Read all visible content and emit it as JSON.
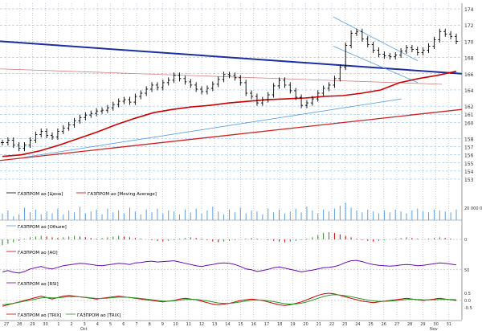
{
  "chart_data": {
    "type": "line",
    "price_axis": {
      "ticks": [
        "174",
        "172",
        "170",
        "168",
        "166",
        "164",
        "162",
        "161",
        "160",
        "158",
        "157",
        "156",
        "155",
        "154",
        "153"
      ],
      "ylim": [
        152.5,
        174.5
      ]
    },
    "legends": {
      "price": [
        "ГАЗПРОМ ao [Цена]",
        "ГАЗПРОМ ao [Moving Average]"
      ],
      "volume": [
        "ГАЗПРОМ ao [Объем]"
      ],
      "ao": [
        "ГАЗПРОМ ao [AO]"
      ],
      "rsi": [
        "ГАЗПРОМ ao [RSI]"
      ],
      "trix": [
        "ГАЗПРОМ ao [TRIX]",
        "ГАЗПРОМ ao [TRIX]"
      ]
    },
    "volume_axis": {
      "ticks": [
        "20 000 0"
      ]
    },
    "ao_axis": {
      "ticks": [
        "0"
      ]
    },
    "rsi_axis": {
      "ticks": [
        "50"
      ]
    },
    "trix_axis": {
      "ticks": [
        "0.5",
        "0.0",
        "-0.5"
      ]
    },
    "x_ticks": [
      "27",
      "28",
      "29",
      "30",
      "1",
      "2",
      "3",
      "4",
      "5",
      "6",
      "7",
      "8",
      "9",
      "10",
      "11",
      "12",
      "13",
      "14",
      "15",
      "16",
      "17",
      "18",
      "19",
      "20",
      "21",
      "22",
      "23",
      "24",
      "25",
      "26",
      "27",
      "28",
      "29",
      "30",
      "31"
    ],
    "month_labels": [
      "Oct",
      "Nov"
    ],
    "colors": {
      "price": "#000000",
      "ma": "#cc0000",
      "trend_blue": "#1a2fa0",
      "trend_light": "#5aa0e0",
      "volume": "#5aa0e0",
      "ao_up": "#2a8a2a",
      "ao_down": "#cc0000",
      "rsi": "#6a0dad",
      "trix1": "#cc0000",
      "trix2": "#2a9a2a",
      "grid": "#9a9a9a"
    },
    "series": [
      {
        "name": "ГАЗПРОМ ao [Цена]",
        "values": [
          157.5,
          157.8,
          157.2,
          156.8,
          157.2,
          157.8,
          158.5,
          158.9,
          158.4,
          158.2,
          158.9,
          159.3,
          159.7,
          160.2,
          160.6,
          160.9,
          161.1,
          161.4,
          161.5,
          161.8,
          162.2,
          162.6,
          162.8,
          162.5,
          163.2,
          163.6,
          164.1,
          164.6,
          164.3,
          164.9,
          165.2,
          165.8,
          165.4,
          165.0,
          164.6,
          164.1,
          163.8,
          164.2,
          164.7,
          165.3,
          165.9,
          165.8,
          165.5,
          164.9,
          163.6,
          163.2,
          162.4,
          162.8,
          163.4,
          164.5,
          165.2,
          164.6,
          163.9,
          163.1,
          162.1,
          162.4,
          162.9,
          163.6,
          164.2,
          164.6,
          165.4,
          166.8,
          169.5,
          171.0,
          171.2,
          170.3,
          169.6,
          168.9,
          168.4,
          168.2,
          168.1,
          168.3,
          168.8,
          169.2,
          169.0,
          168.6,
          168.9,
          169.4,
          170.2,
          171.2,
          170.9,
          170.6,
          170.0
        ]
      },
      {
        "name": "ГАЗПРОМ ao [Moving Average]",
        "values": [
          155.8,
          156.0,
          156.5,
          157.2,
          158.0,
          158.8,
          159.7,
          160.5,
          161.2,
          161.6,
          161.9,
          162.1,
          162.4,
          162.6,
          162.8,
          162.9,
          163.0,
          163.2,
          163.3,
          163.6,
          164.0,
          164.9,
          165.4,
          165.8,
          166.3
        ]
      }
    ],
    "volume_values": [
      35,
      50,
      20,
      30,
      65,
      40,
      55,
      30,
      45,
      35,
      60,
      30,
      50,
      40,
      70,
      35,
      45,
      55,
      30,
      60,
      40,
      50,
      35,
      65,
      45,
      30,
      55,
      40,
      60,
      35,
      50,
      45,
      30,
      55,
      40,
      60,
      35,
      50,
      70,
      45,
      30,
      55,
      40,
      65,
      35,
      50,
      45,
      30,
      60,
      40,
      55,
      35,
      45,
      60,
      40,
      70,
      50,
      35,
      55,
      45,
      60,
      75,
      90,
      65,
      50,
      40,
      55,
      45,
      35,
      50,
      40,
      55,
      45,
      35,
      50,
      60,
      45,
      40,
      55,
      50,
      45,
      40,
      55
    ],
    "ao_values": [
      -0.8,
      -0.6,
      -0.4,
      -0.2,
      0.1,
      0.3,
      0.4,
      0.5,
      0.4,
      0.3,
      0.2,
      0.3,
      0.4,
      0.5,
      0.4,
      0.3,
      0.2,
      0.1,
      0.2,
      0.3,
      0.4,
      0.5,
      0.4,
      0.3,
      0.2,
      0.1,
      0.0,
      -0.1,
      -0.2,
      -0.3,
      -0.2,
      -0.1,
      0.1,
      0.2,
      0.3,
      0.2,
      0.1,
      -0.1,
      -0.3,
      -0.4,
      -0.3,
      -0.2,
      -0.1,
      0.0,
      0.1,
      0.2,
      0.1,
      0.0,
      -0.1,
      -0.2,
      -0.3,
      -0.4,
      -0.3,
      -0.2,
      -0.1,
      0.1,
      0.3,
      0.6,
      0.9,
      1.0,
      0.9,
      0.7,
      0.5,
      0.3,
      0.1,
      -0.1,
      -0.2,
      -0.3,
      -0.2,
      -0.1,
      0.0,
      0.1,
      0.2,
      0.3,
      0.2,
      0.1,
      0.0,
      0.1,
      0.2,
      0.3,
      0.2,
      0.1,
      0.0
    ],
    "rsi_values": [
      45,
      48,
      44,
      42,
      46,
      52,
      55,
      58,
      54,
      52,
      56,
      60,
      62,
      64,
      66,
      65,
      63,
      61,
      60,
      62,
      64,
      66,
      65,
      63,
      67,
      68,
      70,
      71,
      69,
      70,
      71,
      72,
      69,
      66,
      63,
      60,
      58,
      61,
      63,
      66,
      67,
      66,
      63,
      58,
      52,
      50,
      46,
      48,
      51,
      55,
      57,
      54,
      51,
      48,
      45,
      47,
      49,
      52,
      55,
      56,
      58,
      62,
      68,
      72,
      73,
      70,
      66,
      63,
      61,
      60,
      59,
      60,
      62,
      63,
      62,
      60,
      61,
      63,
      65,
      67,
      66,
      64,
      62
    ],
    "trix1_values": [
      -0.4,
      -0.3,
      -0.2,
      -0.1,
      0.0,
      0.1,
      0.2,
      0.3,
      0.2,
      0.1,
      0.2,
      0.3,
      0.35,
      0.3,
      0.25,
      0.2,
      0.15,
      0.1,
      0.15,
      0.2,
      0.25,
      0.3,
      0.25,
      0.2,
      0.15,
      0.1,
      0.05,
      0.0,
      -0.05,
      -0.1,
      -0.05,
      0.0,
      0.1,
      0.15,
      0.1,
      0.05,
      -0.05,
      -0.15,
      -0.25,
      -0.3,
      -0.25,
      -0.2,
      -0.1,
      0.0,
      0.05,
      0.1,
      0.05,
      0.0,
      -0.1,
      -0.2,
      -0.3,
      -0.35,
      -0.3,
      -0.2,
      -0.1,
      0.05,
      0.2,
      0.35,
      0.45,
      0.5,
      0.45,
      0.35,
      0.25,
      0.15,
      0.05,
      -0.05,
      -0.1,
      -0.15,
      -0.1,
      -0.05,
      0.0,
      0.05,
      0.1,
      0.15,
      0.1,
      0.05,
      0.0,
      0.05,
      0.1,
      0.15,
      0.1,
      0.05,
      0.0
    ],
    "trix2_values": [
      -0.3,
      -0.25,
      -0.2,
      -0.12,
      -0.05,
      0.02,
      0.1,
      0.18,
      0.2,
      0.18,
      0.18,
      0.22,
      0.26,
      0.27,
      0.25,
      0.22,
      0.18,
      0.14,
      0.14,
      0.16,
      0.2,
      0.23,
      0.23,
      0.21,
      0.18,
      0.14,
      0.1,
      0.05,
      0.0,
      -0.04,
      -0.05,
      -0.03,
      0.02,
      0.07,
      0.08,
      0.07,
      0.03,
      -0.03,
      -0.1,
      -0.17,
      -0.2,
      -0.2,
      -0.16,
      -0.1,
      -0.04,
      0.02,
      0.03,
      0.02,
      -0.02,
      -0.08,
      -0.15,
      -0.22,
      -0.25,
      -0.24,
      -0.19,
      -0.1,
      0.02,
      0.15,
      0.27,
      0.36,
      0.4,
      0.38,
      0.33,
      0.26,
      0.18,
      0.1,
      0.03,
      -0.03,
      -0.06,
      -0.06,
      -0.04,
      -0.01,
      0.03,
      0.07,
      0.08,
      0.07,
      0.05,
      0.04,
      0.05,
      0.07,
      0.08,
      0.07,
      0.05
    ]
  }
}
